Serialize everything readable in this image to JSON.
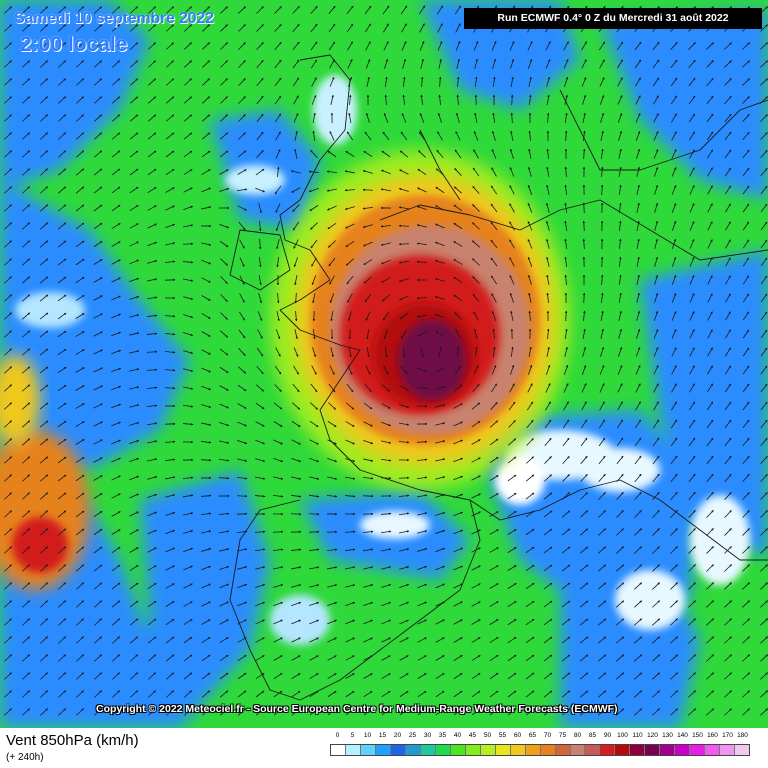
{
  "header": {
    "date_title": "Samedi 10 septembre 2022",
    "time_title": "2:00 locale",
    "run_info": "Run ECMWF 0.4° 0 Z du Mercredi 31 août 2022"
  },
  "copyright": "Copyright © 2022 Meteociel.fr - Source European Centre for Medium-Range Weather Forecasts (ECMWF)",
  "footer": {
    "variable": "Vent 850hPa (km/h)",
    "lead_time": "(+ 240h)"
  },
  "legend": {
    "labels": [
      "0",
      "5",
      "10",
      "15",
      "20",
      "25",
      "30",
      "35",
      "40",
      "45",
      "50",
      "55",
      "60",
      "65",
      "70",
      "75",
      "80",
      "85",
      "90",
      "100",
      "110",
      "120",
      "130",
      "140",
      "150",
      "160",
      "170",
      "180"
    ],
    "colors": [
      "#ffffff",
      "#b4f0ff",
      "#5fd2ff",
      "#1ea0ff",
      "#1e64e6",
      "#1e9bd2",
      "#1ec8a0",
      "#1edc50",
      "#4be61e",
      "#82ee1e",
      "#b4f01e",
      "#e6e61e",
      "#f0c81e",
      "#f0a01e",
      "#e6821e",
      "#d2643c",
      "#c8826e",
      "#c85a5a",
      "#d21e1e",
      "#b40a0a",
      "#8c003c",
      "#780050",
      "#a0008c",
      "#c800c8",
      "#e61ee6",
      "#f05af0",
      "#f096f0",
      "#f0c8f0"
    ]
  },
  "colors": {
    "title_blue": "#2d7bff",
    "green_field": "#2fd93a",
    "blue_field": "#2a8cff",
    "core_red": "#d0141e",
    "core_purple": "#6e1046"
  }
}
